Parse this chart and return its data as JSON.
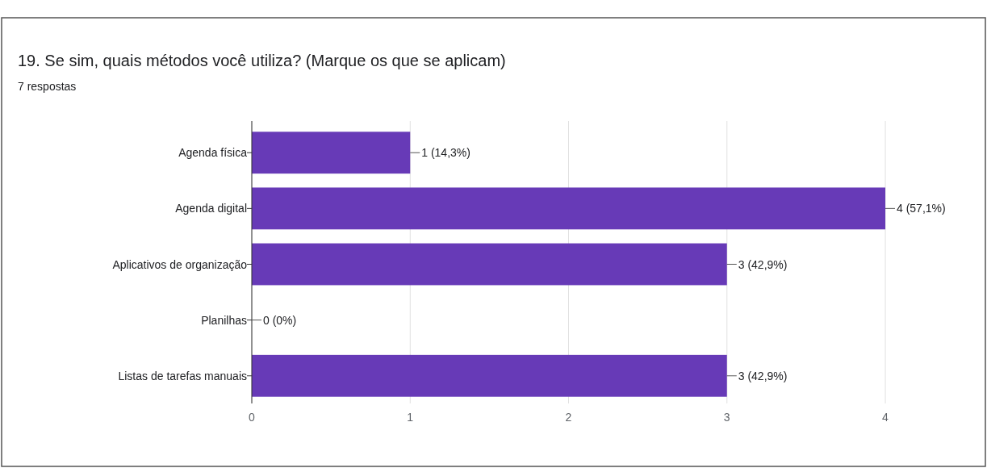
{
  "chart_data": {
    "type": "bar",
    "orientation": "horizontal",
    "title": "19. Se sim, quais métodos você utiliza? (Marque os que se aplicam)",
    "subtitle": "7 respostas",
    "categories": [
      "Agenda física",
      "Agenda digital",
      "Aplicativos de organização",
      "Planilhas",
      "Listas de tarefas manuais"
    ],
    "values": [
      1,
      4,
      3,
      0,
      3
    ],
    "value_labels": [
      "1 (14,3%)",
      "4 (57,1%)",
      "3 (42,9%)",
      "0 (0%)",
      "3 (42,9%)"
    ],
    "color": "#673ab7",
    "xlim": [
      0,
      4
    ],
    "xticks": [
      0,
      1,
      2,
      3,
      4
    ],
    "grid": "x"
  }
}
